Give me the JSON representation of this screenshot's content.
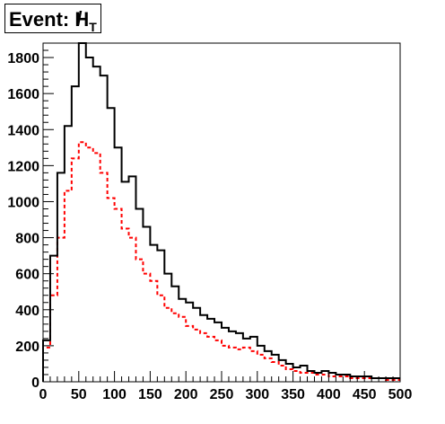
{
  "chart_data": {
    "type": "histogram",
    "title": {
      "prefix": "Event: ",
      "variable": "H",
      "slash": "/",
      "subscript": "T"
    },
    "xlim": [
      0,
      500
    ],
    "ylim": [
      0,
      1880
    ],
    "x_ticks": [
      0,
      50,
      100,
      150,
      200,
      250,
      300,
      350,
      400,
      450,
      500
    ],
    "y_ticks": [
      0,
      200,
      400,
      600,
      800,
      1000,
      1200,
      1400,
      1600,
      1800
    ],
    "bin_width": 10,
    "bin_edges_start": 0,
    "grid": false,
    "legend": "none",
    "series": [
      {
        "style": "solid",
        "color": "#000000",
        "values": [
          230,
          700,
          1160,
          1420,
          1640,
          1880,
          1800,
          1750,
          1700,
          1520,
          1300,
          1110,
          1140,
          960,
          860,
          760,
          730,
          600,
          530,
          460,
          440,
          410,
          370,
          350,
          330,
          300,
          280,
          270,
          240,
          250,
          200,
          170,
          150,
          120,
          100,
          80,
          90,
          60,
          50,
          60,
          50,
          40,
          40,
          30,
          30,
          30,
          20,
          20,
          20,
          20
        ]
      },
      {
        "style": "dashed",
        "color": "#ff0000",
        "values": [
          190,
          480,
          800,
          1060,
          1240,
          1330,
          1300,
          1270,
          1160,
          1020,
          960,
          850,
          800,
          680,
          600,
          560,
          480,
          410,
          380,
          360,
          310,
          290,
          270,
          250,
          230,
          200,
          190,
          180,
          190,
          170,
          150,
          130,
          110,
          90,
          70,
          60,
          50,
          50,
          40,
          40,
          30,
          30,
          30,
          20,
          20,
          20,
          20,
          20,
          10,
          10
        ]
      }
    ]
  }
}
